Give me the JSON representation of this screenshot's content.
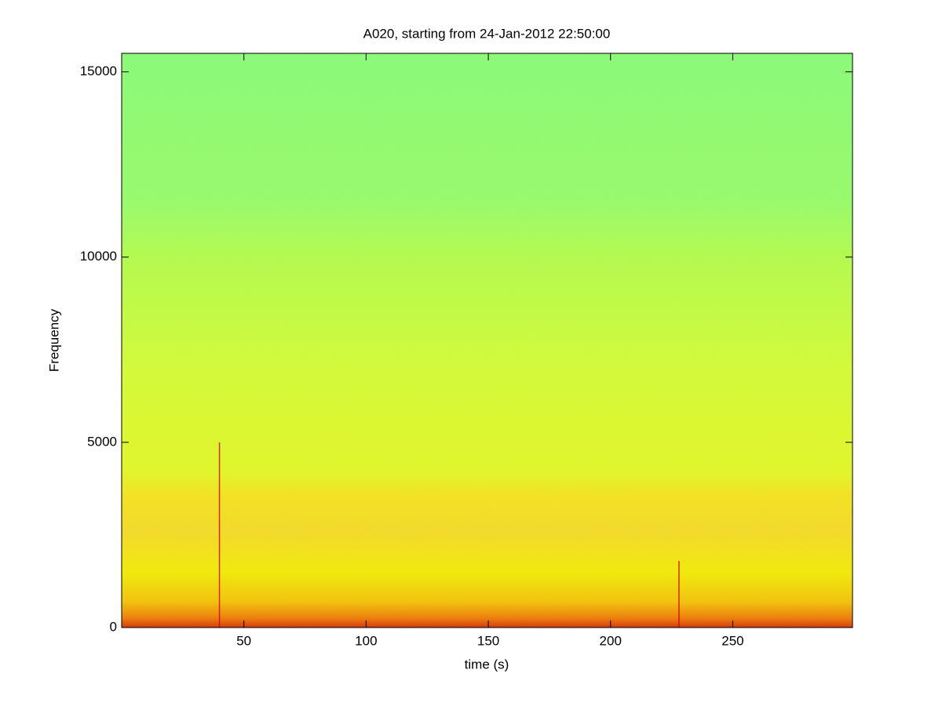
{
  "chart_data": {
    "type": "spectrogram",
    "title": "A020, starting from 24-Jan-2012 22:50:00",
    "xlabel": "time (s)",
    "ylabel": "Frequency",
    "xlim": [
      0,
      299
    ],
    "ylim": [
      0,
      15500
    ],
    "xticks": [
      50,
      100,
      150,
      200,
      250
    ],
    "yticks": [
      0,
      5000,
      10000,
      15000
    ],
    "color_stops": [
      {
        "frequency": 0,
        "color": "#d83000"
      },
      {
        "frequency": 250,
        "color": "#f07a00"
      },
      {
        "frequency": 700,
        "color": "#f6c400"
      },
      {
        "frequency": 1500,
        "color": "#f4ee00"
      },
      {
        "frequency": 2600,
        "color": "#f8dc20"
      },
      {
        "frequency": 3600,
        "color": "#f6e618"
      },
      {
        "frequency": 4200,
        "color": "#e4fa20"
      },
      {
        "frequency": 7000,
        "color": "#d4ff30"
      },
      {
        "frequency": 10000,
        "color": "#b4ff48"
      },
      {
        "frequency": 11500,
        "color": "#96ff66"
      },
      {
        "frequency": 15500,
        "color": "#88ff74"
      }
    ],
    "spikes": [
      {
        "x": 40,
        "top": 5000,
        "color": "#d00000"
      },
      {
        "x": 228,
        "top": 1800,
        "color": "#d00000"
      }
    ]
  }
}
